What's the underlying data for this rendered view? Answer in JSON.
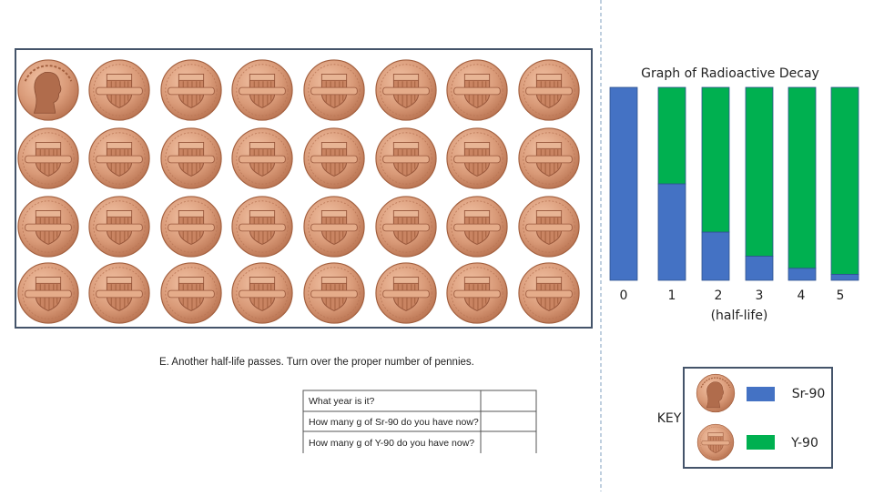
{
  "instruction": "E.  Another half-life passes.  Turn over the proper number of pennies.",
  "table": {
    "rows": [
      "What year is it?",
      "How many g of Sr-90 do you have now?",
      "How many g of Y-90 do you have now?"
    ]
  },
  "key_title": "KEY",
  "chart_data": {
    "type": "bar",
    "stacked": true,
    "title": "Graph of Radioactive Decay",
    "x_label": "(half-life)",
    "categories": [
      "0",
      "1",
      "2",
      "3",
      "4",
      "5"
    ],
    "series": [
      {
        "name": "Sr-90",
        "color": "#4472c4",
        "values": [
          100,
          50,
          25,
          12.5,
          6.25,
          3.125
        ]
      },
      {
        "name": "Y-90",
        "color": "#00b050",
        "values": [
          0,
          50,
          75,
          87.5,
          93.75,
          96.875
        ]
      }
    ],
    "ylim": [
      0,
      100
    ]
  }
}
